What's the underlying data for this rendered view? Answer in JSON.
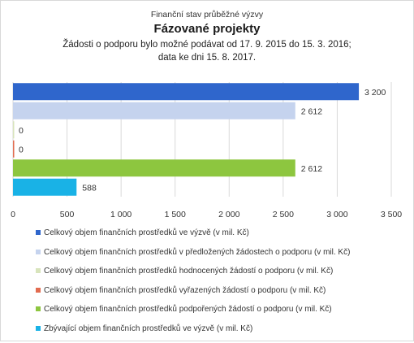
{
  "chart_data": {
    "type": "bar",
    "orientation": "horizontal",
    "supertitle": "Finanční stav průběžné výzvy",
    "title": "Fázované projekty",
    "subtitle": [
      "Žádosti o podporu bylo možné  podávat od 17. 9. 2015 do 15. 3. 2016;",
      "data ke dni 15. 8. 2017."
    ],
    "xlim": [
      0,
      3500
    ],
    "xticks": [
      0,
      500,
      1000,
      1500,
      2000,
      2500,
      3000,
      3500
    ],
    "xtick_labels": [
      "0",
      "500",
      "1 000",
      "1 500",
      "2 000",
      "2 500",
      "3 000",
      "3 500"
    ],
    "grid": true,
    "legend_position": "bottom",
    "series": [
      {
        "name": "Celkový objem finančních prostředků ve výzvě (v mil. Kč)",
        "value": 3200,
        "label": "3 200",
        "color": "#2f66cc"
      },
      {
        "name": "Celkový objem finančních prostředků v předložených žádostech o podporu (v mil. Kč)",
        "value": 2612,
        "label": "2 612",
        "color": "#c5d3ee"
      },
      {
        "name": "Celkový objem finančních prostředků hodnocených žádostí o podporu (v mil. Kč)",
        "value": 0,
        "label": "0",
        "color": "#d8e4bc"
      },
      {
        "name": "Celkový objem finančních prostředků vyřazených žádostí o podporu (v mil. Kč)",
        "value": 0,
        "label": "0",
        "color": "#e26b4f"
      },
      {
        "name": "Celkový objem finančních prostředků podpořených žádostí o podporu (v mil. Kč)",
        "value": 2612,
        "label": "2 612",
        "color": "#8dc63f"
      },
      {
        "name": "Zbývající objem finančních prostředků ve výzvě (v mil. Kč)",
        "value": 588,
        "label": "588",
        "color": "#19b2e6"
      }
    ]
  }
}
